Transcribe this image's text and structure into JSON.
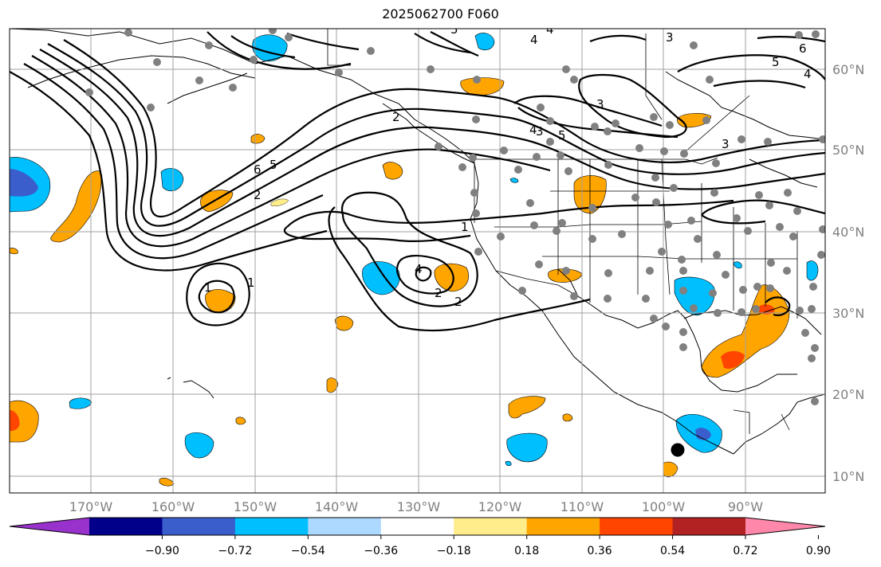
{
  "title": "2025062700 F060",
  "map": {
    "lon_ticks": [
      "170°W",
      "160°W",
      "150°W",
      "140°W",
      "130°W",
      "120°W",
      "110°W",
      "100°W",
      "90°W"
    ],
    "lat_ticks": [
      "60°N",
      "50°N",
      "40°N",
      "30°N",
      "20°N",
      "10°N"
    ],
    "gridlines": true
  },
  "colorbar": {
    "tick_labels": [
      "−0.90",
      "−0.72",
      "−0.54",
      "−0.36",
      "−0.18",
      "0.18",
      "0.36",
      "0.54",
      "0.72",
      "0.90"
    ],
    "colors": [
      "#9932CC",
      "#00008B",
      "#3A5FCD",
      "#00BFFF",
      "#ADD8FF",
      "#FFFFFF",
      "#FFEC8B",
      "#FFA500",
      "#FF4500",
      "#B22222",
      "#FF88AA"
    ]
  },
  "contour_labels": [
    "6",
    "5",
    "2",
    "1",
    "4",
    "3",
    "2",
    "2",
    "1",
    "4",
    "5",
    "3",
    "3",
    "4",
    "5",
    "5",
    "4",
    "4",
    "3",
    "2",
    "6",
    "1"
  ],
  "stations_color": "#808080",
  "marker": "storm-center-dot"
}
